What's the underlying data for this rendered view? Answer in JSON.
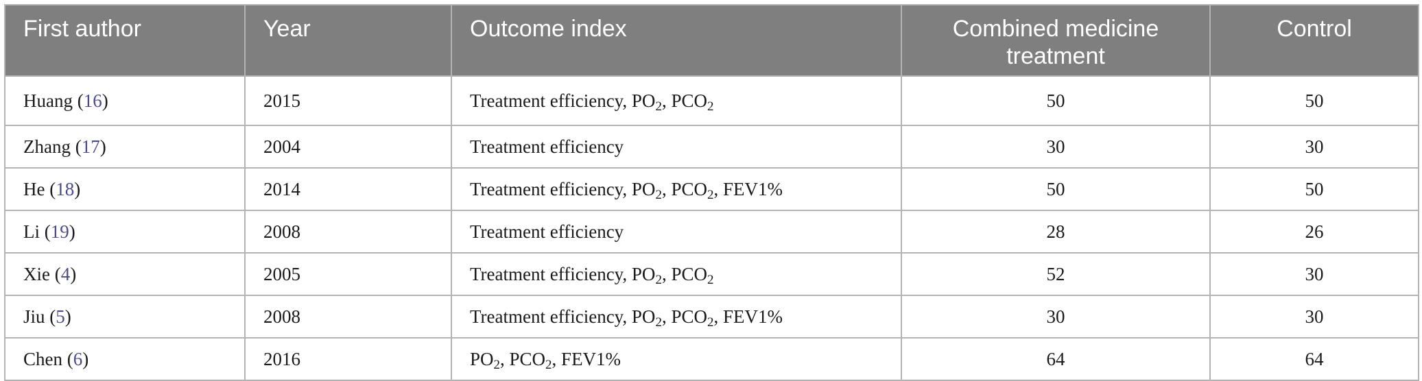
{
  "table": {
    "headers": [
      "First author",
      "Year",
      "Outcome index",
      "Combined medicine treatment",
      "Control"
    ],
    "rows": [
      {
        "author": "Huang",
        "ref": "16",
        "year": "2015",
        "outcome": "Treatment efficiency, PO₂, PCO₂",
        "combined": "50",
        "control": "50"
      },
      {
        "author": "Zhang",
        "ref": "17",
        "year": "2004",
        "outcome": "Treatment efficiency",
        "combined": "30",
        "control": "30"
      },
      {
        "author": "He",
        "ref": "18",
        "year": "2014",
        "outcome": "Treatment efficiency, PO₂, PCO₂, FEV1%",
        "combined": "50",
        "control": "50"
      },
      {
        "author": "Li",
        "ref": "19",
        "year": "2008",
        "outcome": "Treatment efficiency",
        "combined": "28",
        "control": "26"
      },
      {
        "author": "Xie",
        "ref": "4",
        "year": "2005",
        "outcome": "Treatment efficiency, PO₂, PCO₂",
        "combined": "52",
        "control": "30"
      },
      {
        "author": "Jiu",
        "ref": "5",
        "year": "2008",
        "outcome": "Treatment efficiency, PO₂, PCO₂, FEV1%",
        "combined": "30",
        "control": "30"
      },
      {
        "author": "Chen",
        "ref": "6",
        "year": "2016",
        "outcome": "PO₂, PCO₂, FEV1%",
        "combined": "64",
        "control": "64"
      }
    ]
  },
  "colors": {
    "header_bg": "#7f7f7f",
    "header_text": "#ffffff",
    "reference_link": "#4a4a90",
    "border": "#b3b3b3"
  }
}
